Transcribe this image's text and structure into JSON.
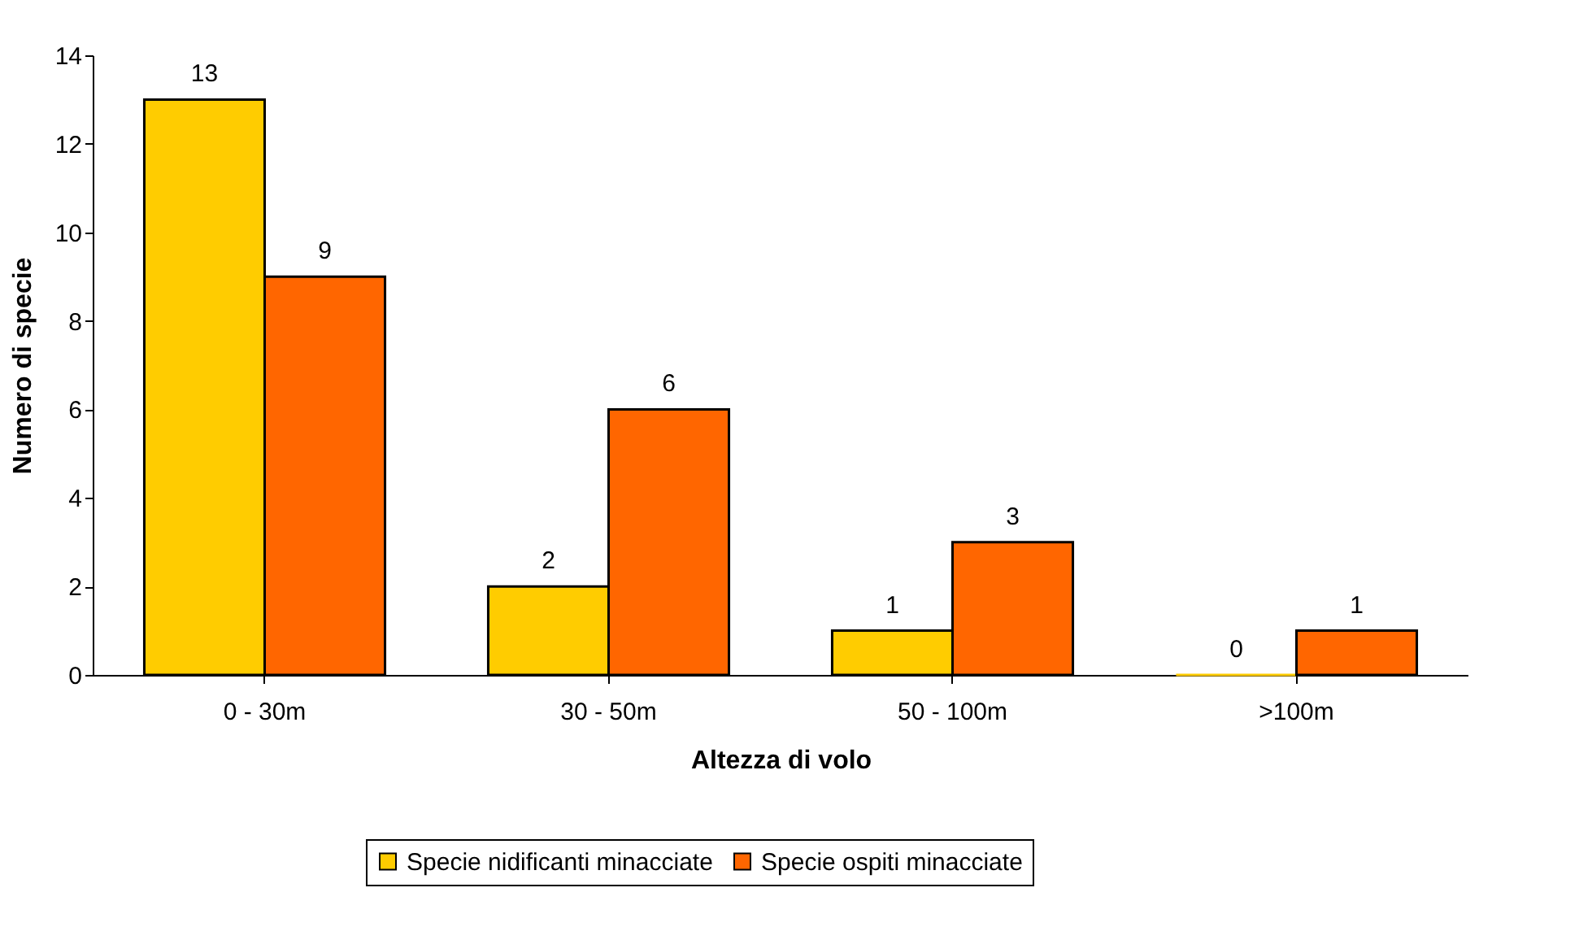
{
  "chart_data": {
    "type": "bar",
    "xlabel": "Altezza di volo",
    "ylabel": "Numero di specie",
    "categories": [
      "0 - 30m",
      "30 - 50m",
      "50 - 100m",
      ">100m"
    ],
    "series": [
      {
        "name": "Specie nidificanti minacciate",
        "color": "#ffcc00",
        "values": [
          13,
          2,
          1,
          0
        ]
      },
      {
        "name": "Specie ospiti minacciate",
        "color": "#ff6600",
        "values": [
          9,
          6,
          3,
          1
        ]
      }
    ],
    "ylim": [
      0,
      14
    ],
    "yticks": [
      0,
      2,
      4,
      6,
      8,
      10,
      12,
      14
    ],
    "grid": false,
    "legend": "bottom",
    "data_labels": true
  }
}
